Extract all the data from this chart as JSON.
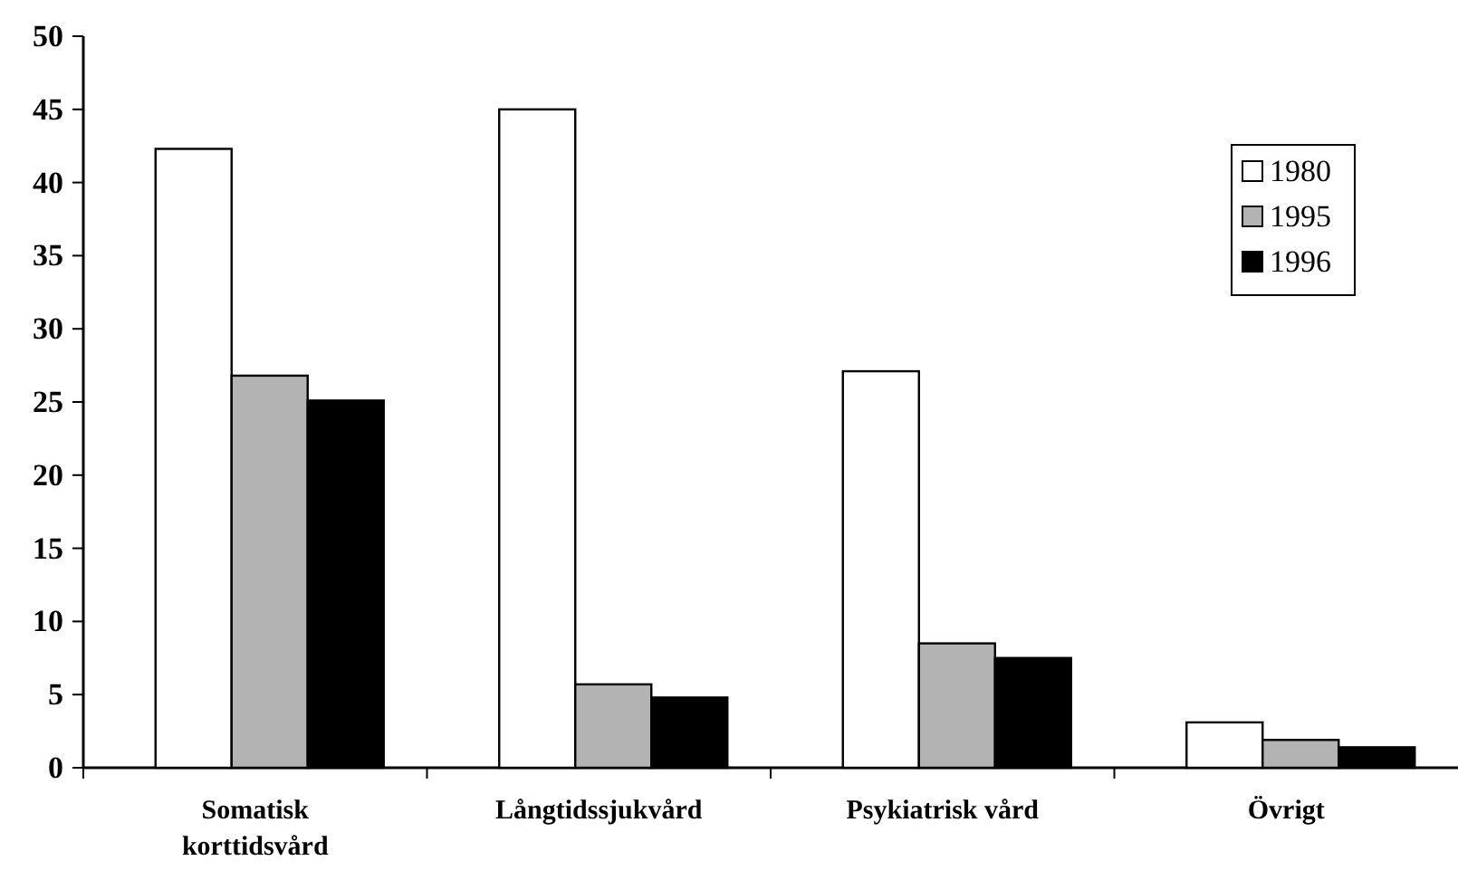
{
  "chart_data": {
    "type": "bar",
    "categories": [
      "Somatisk\nkorttidsvård",
      "Långtidssjukvård",
      "Psykiatrisk vård",
      "Övrigt"
    ],
    "series": [
      {
        "name": "1980",
        "color": "#ffffff",
        "values": [
          42.3,
          45.0,
          27.1,
          3.1
        ]
      },
      {
        "name": "1995",
        "color": "#b3b3b3",
        "values": [
          26.8,
          5.7,
          8.5,
          1.9
        ]
      },
      {
        "name": "1996",
        "color": "#000000",
        "values": [
          25.1,
          4.8,
          7.5,
          1.4
        ]
      }
    ],
    "ylim": [
      0,
      50
    ],
    "yticks": [
      0,
      5,
      10,
      15,
      20,
      25,
      30,
      35,
      40,
      45,
      50
    ],
    "grid": false,
    "legend": "top right"
  }
}
